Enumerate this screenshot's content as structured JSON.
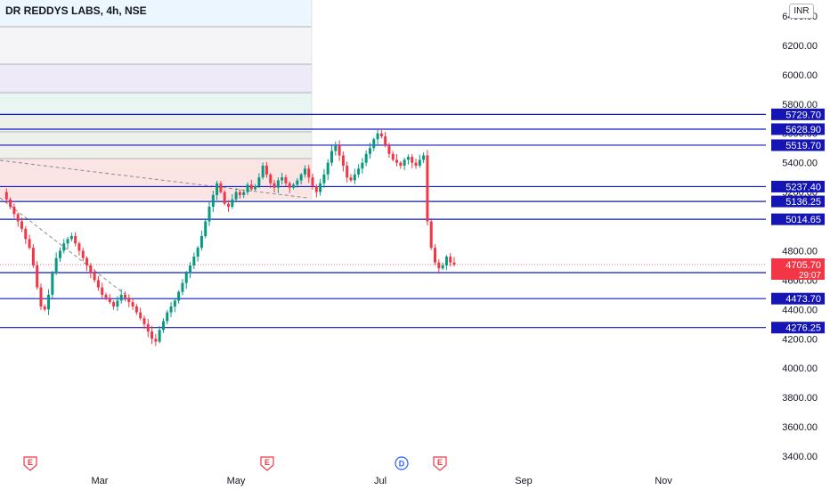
{
  "header": {
    "title": "DR REDDYS LABS, 4h, NSE",
    "currency": "INR"
  },
  "colors": {
    "up": "#089981",
    "down": "#f23645",
    "level": "#0d1ac8",
    "level_label_bg": "#1515b5",
    "price_bg": "#f23645",
    "axis_text": "#131722"
  },
  "chart_data": {
    "type": "candlestick",
    "title": "DR REDDYS LABS, 4h, NSE",
    "ylim": [
      3400,
      6500
    ],
    "y_ticks": [
      3400,
      3600,
      3800,
      4000,
      4200,
      4400,
      4600,
      4800,
      5000,
      5200,
      5400,
      5600,
      5800,
      6000,
      6200,
      6400
    ],
    "y_tick_labels": [
      "3400.00",
      "3600.00",
      "3800.00",
      "4000.00",
      "4200.00",
      "4400.00",
      "4600.00",
      "4800.00",
      "5000.00",
      "5200.00",
      "5400.00",
      "5600.00",
      "5800.00",
      "6000.00",
      "6200.00",
      "6400.00"
    ],
    "x_labels": [
      "Mar",
      "May",
      "Jul",
      "Sep",
      "Nov"
    ],
    "levels": [
      {
        "value": 5729.7,
        "label": "5729.70"
      },
      {
        "value": 5628.9,
        "label": "5628.90"
      },
      {
        "value": 5519.7,
        "label": "5519.70"
      },
      {
        "value": 5237.4,
        "label": "5237.40"
      },
      {
        "value": 5136.25,
        "label": "5136.25"
      },
      {
        "value": 5014.65,
        "label": "5014.65"
      },
      {
        "value": 4651.05,
        "label": "4651.05"
      },
      {
        "value": 4473.7,
        "label": "4473.70"
      },
      {
        "value": 4276.25,
        "label": "4276.25"
      }
    ],
    "last_price": {
      "value": 4705.7,
      "label": "4705.70",
      "countdown": "29:07"
    },
    "events": [
      {
        "type": "E",
        "date": "Feb"
      },
      {
        "type": "E",
        "date": "May"
      },
      {
        "type": "D",
        "date": "Jul"
      },
      {
        "type": "E",
        "date": "Jul"
      }
    ],
    "price_path": [
      5200,
      5150,
      5100,
      5050,
      5000,
      4950,
      4880,
      4820,
      4700,
      4550,
      4420,
      4400,
      4500,
      4650,
      4750,
      4800,
      4850,
      4880,
      4900,
      4850,
      4800,
      4750,
      4700,
      4650,
      4600,
      4550,
      4500,
      4480,
      4450,
      4420,
      4460,
      4500,
      4480,
      4450,
      4420,
      4380,
      4340,
      4300,
      4250,
      4200,
      4180,
      4260,
      4320,
      4380,
      4420,
      4460,
      4520,
      4580,
      4650,
      4700,
      4760,
      4820,
      4900,
      5000,
      5100,
      5180,
      5260,
      5200,
      5120,
      5100,
      5150,
      5200,
      5180,
      5200,
      5250,
      5220,
      5240,
      5300,
      5380,
      5320,
      5260,
      5230,
      5280,
      5300,
      5260,
      5230,
      5250,
      5280,
      5320,
      5360,
      5300,
      5240,
      5200,
      5260,
      5320,
      5400,
      5480,
      5520,
      5450,
      5380,
      5300,
      5280,
      5320,
      5360,
      5400,
      5460,
      5500,
      5560,
      5600,
      5580,
      5520,
      5460,
      5420,
      5400,
      5380,
      5420,
      5440,
      5400,
      5380,
      5420,
      5450,
      5000,
      4820,
      4720,
      4680,
      4700,
      4760,
      4720,
      4705.7
    ]
  }
}
